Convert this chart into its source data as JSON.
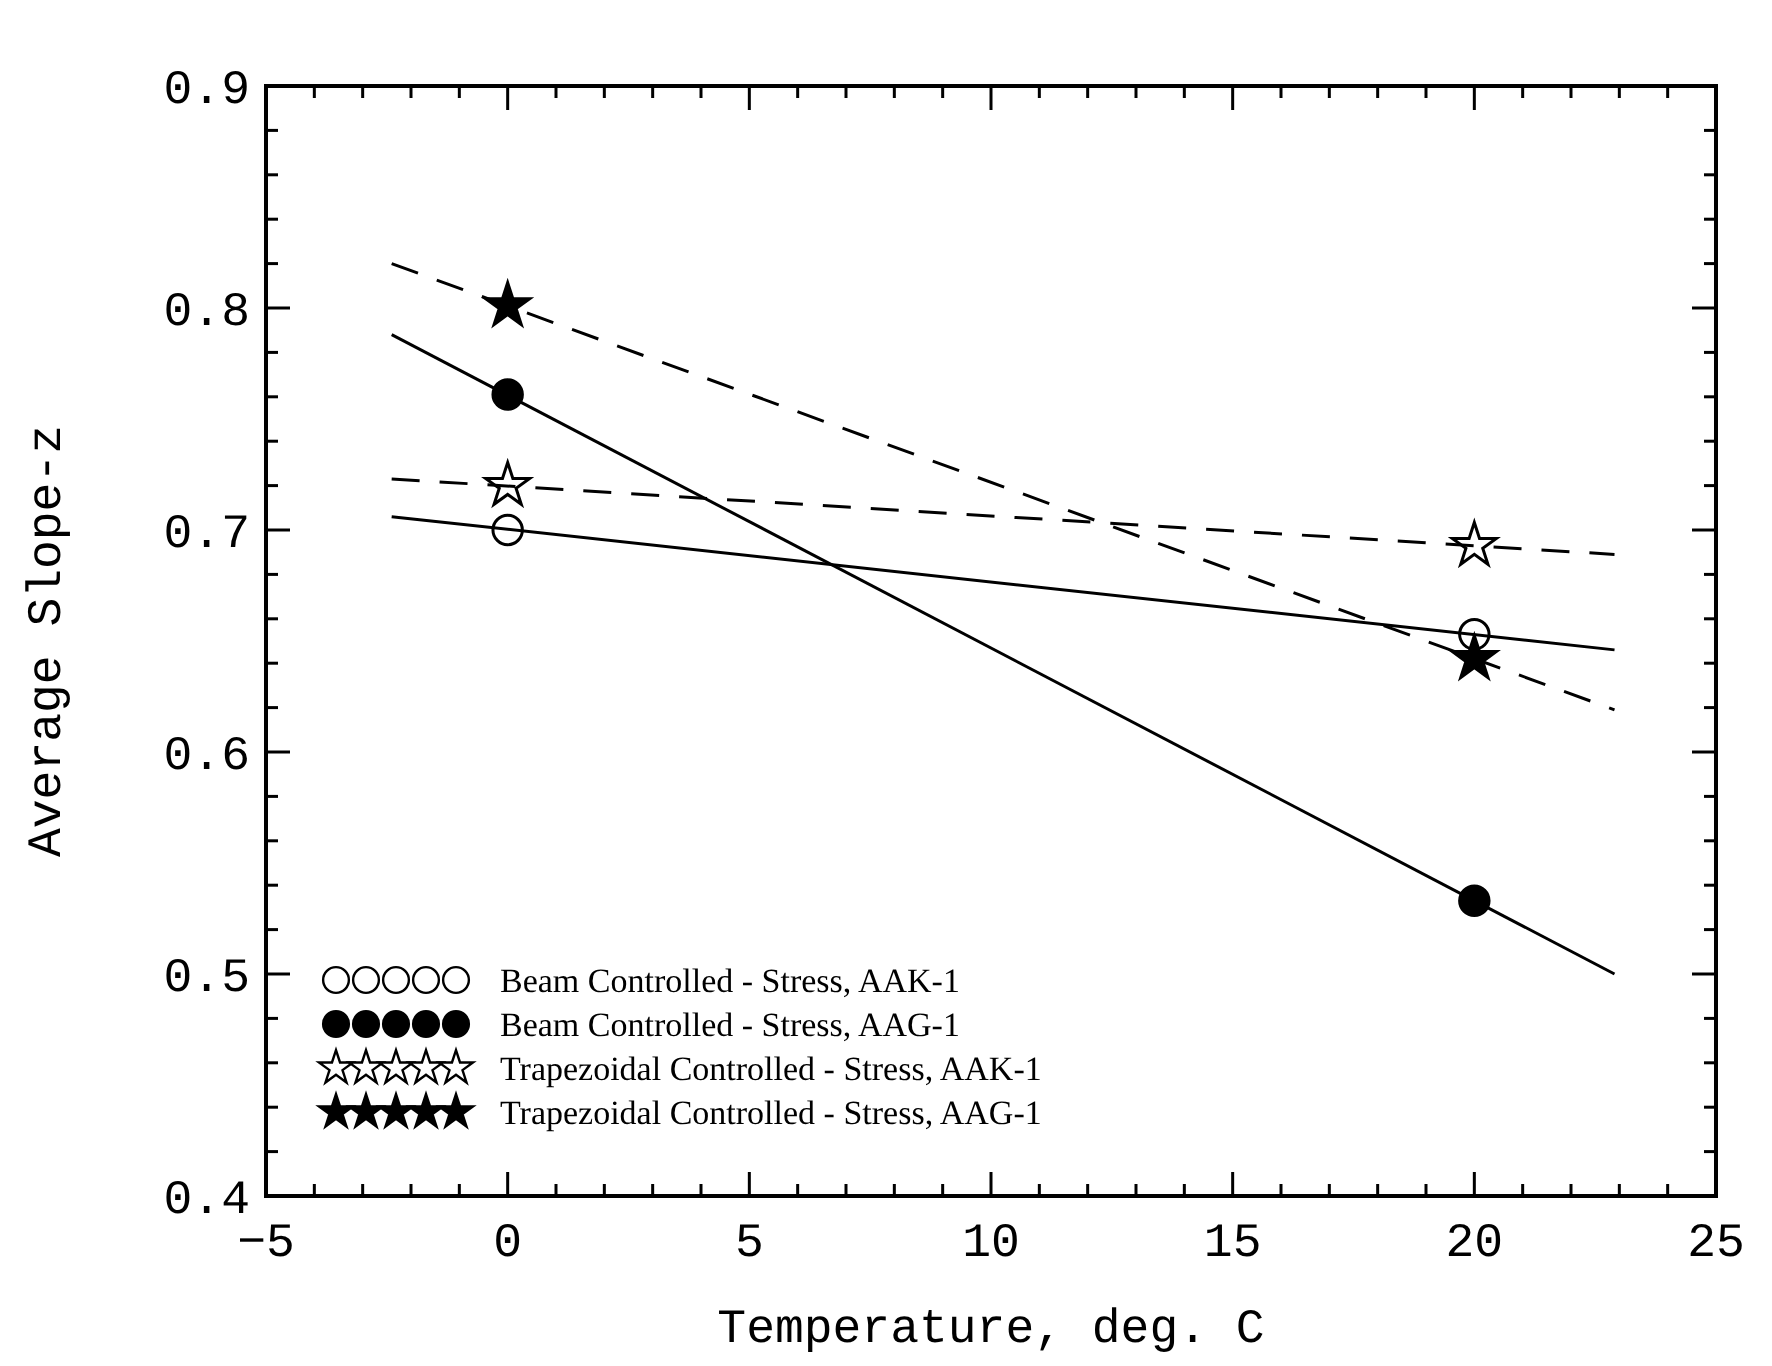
{
  "chart_data": {
    "type": "scatter",
    "xlabel": "Temperature, deg. C",
    "ylabel": "Average Slope-z",
    "xlim": [
      -5,
      25
    ],
    "ylim": [
      0.4,
      0.9
    ],
    "xticks": [
      -5,
      {
        "value": -4,
        "label": null
      },
      {
        "value": -3,
        "label": null
      },
      {
        "value": -2,
        "label": null
      },
      {
        "value": -1,
        "label": null
      },
      0,
      {
        "value": 1,
        "label": null
      },
      {
        "value": 2,
        "label": null
      },
      {
        "value": 3,
        "label": null
      },
      {
        "value": 4,
        "label": null
      },
      5,
      {
        "value": 6,
        "label": null
      },
      {
        "value": 7,
        "label": null
      },
      {
        "value": 8,
        "label": null
      },
      {
        "value": 9,
        "label": null
      },
      10,
      {
        "value": 11,
        "label": null
      },
      {
        "value": 12,
        "label": null
      },
      {
        "value": 13,
        "label": null
      },
      {
        "value": 14,
        "label": null
      },
      15,
      {
        "value": 16,
        "label": null
      },
      {
        "value": 17,
        "label": null
      },
      {
        "value": 18,
        "label": null
      },
      {
        "value": 19,
        "label": null
      },
      20,
      {
        "value": 21,
        "label": null
      },
      {
        "value": 22,
        "label": null
      },
      {
        "value": 23,
        "label": null
      },
      {
        "value": 24,
        "label": null
      },
      25
    ],
    "yticks": [
      0.4,
      {
        "value": 0.42,
        "label": null
      },
      {
        "value": 0.44,
        "label": null
      },
      {
        "value": 0.46,
        "label": null
      },
      {
        "value": 0.48,
        "label": null
      },
      0.5,
      {
        "value": 0.52,
        "label": null
      },
      {
        "value": 0.54,
        "label": null
      },
      {
        "value": 0.56,
        "label": null
      },
      {
        "value": 0.58,
        "label": null
      },
      0.6,
      {
        "value": 0.62,
        "label": null
      },
      {
        "value": 0.64,
        "label": null
      },
      {
        "value": 0.66,
        "label": null
      },
      {
        "value": 0.68,
        "label": null
      },
      0.7,
      {
        "value": 0.72,
        "label": null
      },
      {
        "value": 0.74,
        "label": null
      },
      {
        "value": 0.76,
        "label": null
      },
      {
        "value": 0.78,
        "label": null
      },
      0.8,
      {
        "value": 0.82,
        "label": null
      },
      {
        "value": 0.84,
        "label": null
      },
      {
        "value": 0.86,
        "label": null
      },
      {
        "value": 0.88,
        "label": null
      },
      0.9
    ],
    "grid": false,
    "legend": "bottom left",
    "series": [
      {
        "name": "Beam Controlled - Stress, AAK-1",
        "marker": "circle",
        "x": [
          0,
          20
        ],
        "values": [
          0.7,
          0.653
        ]
      },
      {
        "name": "Beam Controlled - Stress, AAG-1",
        "marker": "circle",
        "color": "#000000",
        "x": [
          0,
          20
        ],
        "values": [
          0.761,
          0.533
        ]
      },
      {
        "name": "Trapezoidal Controlled - Stress, AAK-1",
        "marker": "star",
        "x": [
          0,
          20
        ],
        "values": [
          0.72,
          0.693
        ]
      },
      {
        "name": "Trapezoidal Controlled - Stress, AAG-1",
        "marker": "star",
        "color": "#000000",
        "x": [
          0,
          20
        ],
        "values": [
          0.801,
          0.642
        ]
      },
      {
        "type": "line",
        "color": "#000000",
        "line_style": "solid",
        "marker": "none",
        "x": [
          -2.4,
          22.9
        ],
        "values": [
          0.706,
          0.646
        ]
      },
      {
        "type": "line",
        "color": "#000000",
        "line_style": "solid",
        "marker": "none",
        "x": [
          -2.4,
          22.9
        ],
        "values": [
          0.788,
          0.5
        ]
      },
      {
        "type": "line",
        "color": "#000000",
        "line_style": "dashed",
        "marker": "none",
        "x": [
          -2.4,
          22.9
        ],
        "values": [
          0.723,
          0.689
        ]
      },
      {
        "type": "line",
        "color": "#000000",
        "line_style": "dashed",
        "marker": "none",
        "x": [
          -2.4,
          22.9
        ],
        "values": [
          0.82,
          0.619
        ]
      }
    ]
  }
}
